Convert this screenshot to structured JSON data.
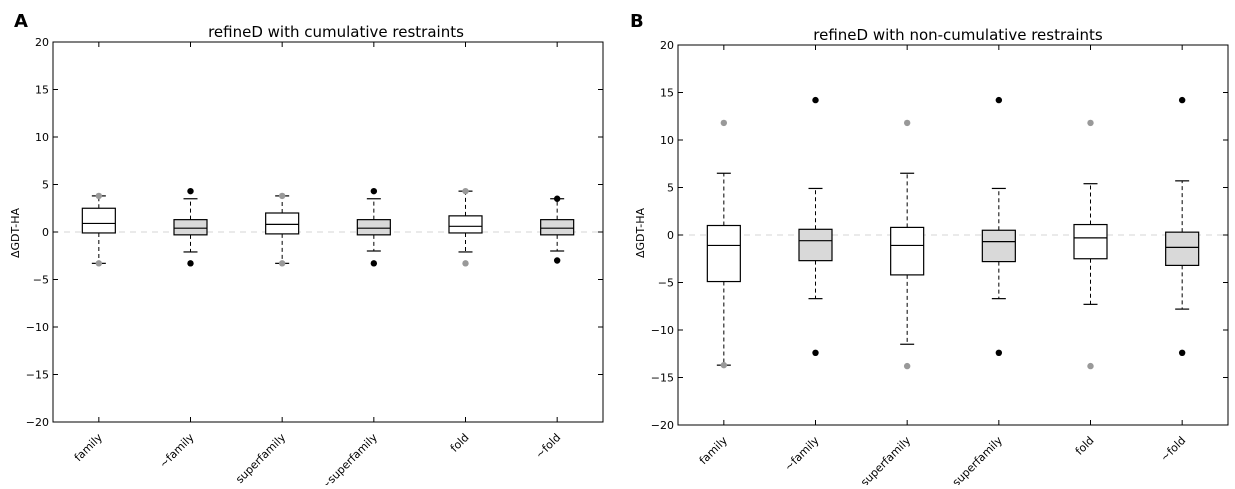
{
  "chart_data": [
    {
      "type": "box",
      "panel_letter": "A",
      "title": "refineD with cumulative restraints",
      "xlabel": "",
      "ylabel": "ΔGDT-HA",
      "ylim": [
        -20,
        20
      ],
      "yticks": [
        -20,
        -15,
        -10,
        -5,
        0,
        5,
        10,
        15,
        20
      ],
      "ytick_labels": [
        "−20",
        "−15",
        "−10",
        "−5",
        "0",
        "5",
        "10",
        "15",
        "20"
      ],
      "grid": false,
      "reference_line": 0,
      "categories": [
        "family",
        "~family",
        "superfamily",
        "~superfamily",
        "fold",
        "~fold"
      ],
      "boxes": [
        {
          "category": "family",
          "fill": "#ffffff",
          "whisker_low": -3.3,
          "q1": -0.1,
          "median": 0.9,
          "q3": 2.5,
          "whisker_high": 3.8,
          "outliers": [
            {
              "value": 3.8,
              "color": "#999999"
            },
            {
              "value": -3.3,
              "color": "#999999"
            }
          ]
        },
        {
          "category": "~family",
          "fill": "#d9d9d9",
          "whisker_low": -2.1,
          "q1": -0.3,
          "median": 0.4,
          "q3": 1.3,
          "whisker_high": 3.5,
          "outliers": [
            {
              "value": 4.3,
              "color": "#000000"
            },
            {
              "value": -3.3,
              "color": "#000000"
            }
          ]
        },
        {
          "category": "superfamily",
          "fill": "#ffffff",
          "whisker_low": -3.3,
          "q1": -0.2,
          "median": 0.8,
          "q3": 2.0,
          "whisker_high": 3.8,
          "outliers": [
            {
              "value": 3.8,
              "color": "#999999"
            },
            {
              "value": -3.3,
              "color": "#999999"
            }
          ]
        },
        {
          "category": "~superfamily",
          "fill": "#d9d9d9",
          "whisker_low": -2.0,
          "q1": -0.3,
          "median": 0.4,
          "q3": 1.3,
          "whisker_high": 3.5,
          "outliers": [
            {
              "value": 4.3,
              "color": "#000000"
            },
            {
              "value": -3.3,
              "color": "#000000"
            }
          ]
        },
        {
          "category": "fold",
          "fill": "#ffffff",
          "whisker_low": -2.1,
          "q1": -0.1,
          "median": 0.6,
          "q3": 1.7,
          "whisker_high": 4.3,
          "outliers": [
            {
              "value": 4.3,
              "color": "#999999"
            },
            {
              "value": -3.3,
              "color": "#999999"
            }
          ]
        },
        {
          "category": "~fold",
          "fill": "#d9d9d9",
          "whisker_low": -2.0,
          "q1": -0.3,
          "median": 0.4,
          "q3": 1.3,
          "whisker_high": 3.5,
          "outliers": [
            {
              "value": 3.5,
              "color": "#000000"
            },
            {
              "value": -3.0,
              "color": "#000000"
            }
          ]
        }
      ]
    },
    {
      "type": "box",
      "panel_letter": "B",
      "title": "refineD with non-cumulative restraints",
      "xlabel": "",
      "ylabel": "ΔGDT-HA",
      "ylim": [
        -20,
        20
      ],
      "yticks": [
        -20,
        -15,
        -10,
        -5,
        0,
        5,
        10,
        15,
        20
      ],
      "ytick_labels": [
        "−20",
        "−15",
        "−10",
        "−5",
        "0",
        "5",
        "10",
        "15",
        "20"
      ],
      "grid": false,
      "reference_line": 0,
      "categories": [
        "family",
        "~family",
        "superfamily",
        "~superfamily",
        "fold",
        "~fold"
      ],
      "boxes": [
        {
          "category": "family",
          "fill": "#ffffff",
          "whisker_low": -13.7,
          "q1": -4.9,
          "median": -1.1,
          "q3": 1.0,
          "whisker_high": 6.5,
          "outliers": [
            {
              "value": 11.8,
              "color": "#999999"
            },
            {
              "value": -13.7,
              "color": "#999999"
            }
          ]
        },
        {
          "category": "~family",
          "fill": "#d9d9d9",
          "whisker_low": -6.7,
          "q1": -2.7,
          "median": -0.6,
          "q3": 0.6,
          "whisker_high": 4.9,
          "outliers": [
            {
              "value": 14.2,
              "color": "#000000"
            },
            {
              "value": -12.4,
              "color": "#000000"
            }
          ]
        },
        {
          "category": "superfamily",
          "fill": "#ffffff",
          "whisker_low": -11.5,
          "q1": -4.2,
          "median": -1.1,
          "q3": 0.8,
          "whisker_high": 6.5,
          "outliers": [
            {
              "value": 11.8,
              "color": "#999999"
            },
            {
              "value": -13.8,
              "color": "#999999"
            }
          ]
        },
        {
          "category": "~superfamily",
          "fill": "#d9d9d9",
          "whisker_low": -6.7,
          "q1": -2.8,
          "median": -0.7,
          "q3": 0.5,
          "whisker_high": 4.9,
          "outliers": [
            {
              "value": 14.2,
              "color": "#000000"
            },
            {
              "value": -12.4,
              "color": "#000000"
            }
          ]
        },
        {
          "category": "fold",
          "fill": "#ffffff",
          "whisker_low": -7.3,
          "q1": -2.5,
          "median": -0.3,
          "q3": 1.1,
          "whisker_high": 5.4,
          "outliers": [
            {
              "value": 11.8,
              "color": "#999999"
            },
            {
              "value": -13.8,
              "color": "#999999"
            }
          ]
        },
        {
          "category": "~fold",
          "fill": "#d9d9d9",
          "whisker_low": -7.8,
          "q1": -3.2,
          "median": -1.3,
          "q3": 0.3,
          "whisker_high": 5.7,
          "outliers": [
            {
              "value": 14.2,
              "color": "#000000"
            },
            {
              "value": -12.4,
              "color": "#000000"
            }
          ]
        }
      ]
    }
  ]
}
